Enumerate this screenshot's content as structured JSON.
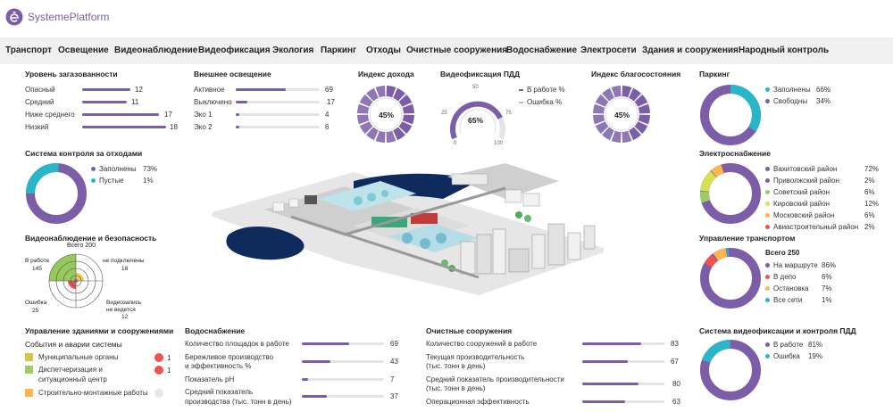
{
  "brand": {
    "name": "SystemePlatform"
  },
  "nav": [
    "Транспорт",
    "Освещение",
    "Видеонаблюдение",
    "Видеофиксация",
    "Экология",
    "Паркинг",
    "Отходы",
    "Очистные сооружения",
    "Водоснабжение",
    "Электросети",
    "Здания и сооружения",
    "Народный контроль"
  ],
  "pollution": {
    "title": "Уровень загазованности",
    "rows": [
      {
        "label": "Опасный",
        "value": 12
      },
      {
        "label": "Средний",
        "value": 11
      },
      {
        "label": "Ниже среднего",
        "value": 17
      },
      {
        "label": "Низкий",
        "value": 18
      }
    ]
  },
  "lighting": {
    "title": "Внешнее освещение",
    "rows": [
      {
        "label": "Активное",
        "value": 69
      },
      {
        "label": "Выключено",
        "value": 17
      },
      {
        "label": "Эко 1",
        "value": 4
      },
      {
        "label": "Эко 2",
        "value": 6
      }
    ]
  },
  "income": {
    "title": "Индекс дохода",
    "value": "45%",
    "fraction": 0.45
  },
  "pdd": {
    "title": "Видеофиксация ПДД",
    "value": "65%",
    "fraction": 0.65,
    "ticks": {
      "t0": "0",
      "t25": "25",
      "t50": "50",
      "t75": "75",
      "t100": "100"
    },
    "legend": [
      {
        "label": "В работе %",
        "color": "#7b5ea7"
      },
      {
        "label": "Ошибка %",
        "color": "#bbbbbb"
      }
    ]
  },
  "wellbeing": {
    "title": "Индекс благосостояния",
    "value": "45%",
    "fraction": 0.45
  },
  "parking": {
    "title": "Паркинг",
    "legend": [
      {
        "label": "Заполнены",
        "value": "66%",
        "color": "#7b5ea7"
      },
      {
        "label": "Свободны",
        "value": "34%",
        "color": "#2bb5c8"
      }
    ]
  },
  "waste": {
    "title": "Система контроля за отходами",
    "legend": [
      {
        "label": "Заполнены",
        "value": "73%",
        "color": "#7b5ea7"
      },
      {
        "label": "Пустые",
        "value": "1%",
        "color": "#2bb5c8"
      }
    ]
  },
  "video": {
    "title": "Видеонаблюдение и безопасность",
    "total": "Всего 200",
    "working_label": "В работе",
    "working": "145",
    "disconnected_label": "не подключены",
    "disconnected": "18",
    "error_label": "Ошибка",
    "error": "25",
    "norec_label1": "Видеозапись",
    "norec_label2": "не ведется",
    "norec": "12"
  },
  "power": {
    "title": "Электроснабжение",
    "legend": [
      {
        "label": "Вахитовский район",
        "value": "72%",
        "color": "#7b5ea7"
      },
      {
        "label": "Приволжский район",
        "value": "2%",
        "color": "#7b5ea7"
      },
      {
        "label": "Советский район",
        "value": "6%",
        "color": "#9ccc65"
      },
      {
        "label": "Кировский район",
        "value": "12%",
        "color": "#d4e157"
      },
      {
        "label": "Московский район",
        "value": "6%",
        "color": "#ffb74d"
      },
      {
        "label": "Авиастроительный район",
        "value": "2%",
        "color": "#ef5350"
      }
    ]
  },
  "transport": {
    "title": "Управление транспортом",
    "total": "Всего 250",
    "legend": [
      {
        "label": "На маршруте",
        "value": "86%",
        "color": "#7b5ea7"
      },
      {
        "label": "В депо",
        "value": "6%",
        "color": "#ef5350"
      },
      {
        "label": "Остановка",
        "value": "7%",
        "color": "#ffb74d"
      },
      {
        "label": "Все сети",
        "value": "1%",
        "color": "#2bb5c8"
      }
    ]
  },
  "buildings": {
    "title": "Управление зданиями и сооружениями",
    "subtitle": "События и аварии системы",
    "rows": [
      {
        "label": "Муниципальные органы",
        "value": "1",
        "color": "#d4c64a"
      },
      {
        "label": "Диспетчеризация и",
        "label2": "ситуационный центр",
        "value": "1",
        "color": "#9ccc65"
      },
      {
        "label": "Строительно-монтажные работы",
        "value": "",
        "color": "#ffb74d"
      }
    ]
  },
  "water": {
    "title": "Водоснабжение",
    "rows": [
      {
        "label": "Количество площадок в работе",
        "label2": "",
        "value": 69
      },
      {
        "label": "Бережливое производство",
        "label2": "и эффективность %",
        "value": 43
      },
      {
        "label": "Показатель pH",
        "label2": "",
        "value": 7
      },
      {
        "label": "Средний показатель",
        "label2": "производства (тыс. тонн в день)",
        "value": 37
      }
    ]
  },
  "treatment": {
    "title": "Очистные сооружения",
    "rows": [
      {
        "label": "Количество сооружений в работе",
        "label2": "",
        "value": 83
      },
      {
        "label": "Текущая производительность",
        "label2": "(тыс. тонн в день)",
        "value": 67
      },
      {
        "label": "Средний показатель производительности",
        "label2": "(тыс. тонн в день)",
        "value": 80
      },
      {
        "label": "Операционная эффективность",
        "label2": "",
        "value": 63
      }
    ]
  },
  "cameras": {
    "title": "Система видеофиксации и контроля ПДД",
    "legend": [
      {
        "label": "В работе",
        "value": "81%",
        "color": "#7b5ea7"
      },
      {
        "label": "Ошибка",
        "value": "19%",
        "color": "#2bb5c8"
      }
    ]
  }
}
